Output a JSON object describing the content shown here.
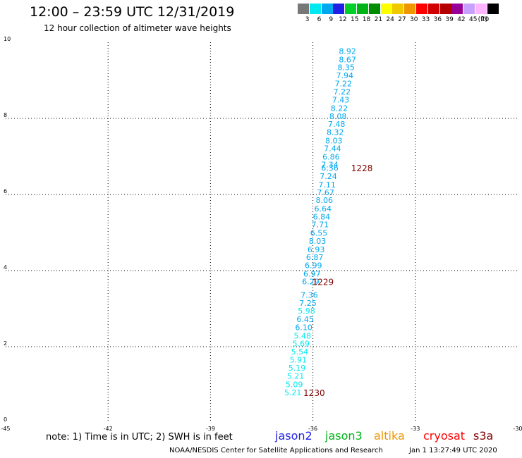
{
  "header": {
    "title": "12:00 – 23:59 UTC 12/31/2019",
    "subtitle": "12 hour collection of altimeter wave heights"
  },
  "colorbar": {
    "unit": "(ft)",
    "swatches": [
      {
        "label": "3",
        "color": "#787878"
      },
      {
        "label": "6",
        "color": "#00e8f0"
      },
      {
        "label": "9",
        "color": "#00a8f0"
      },
      {
        "label": "12",
        "color": "#1f1fe6"
      },
      {
        "label": "15",
        "color": "#00d028"
      },
      {
        "label": "18",
        "color": "#00b418"
      },
      {
        "label": "21",
        "color": "#008c00"
      },
      {
        "label": "24",
        "color": "#ffff00"
      },
      {
        "label": "27",
        "color": "#f0c800"
      },
      {
        "label": "30",
        "color": "#f09600"
      },
      {
        "label": "33",
        "color": "#ff0000"
      },
      {
        "label": "36",
        "color": "#d20000"
      },
      {
        "label": "39",
        "color": "#b40000"
      },
      {
        "label": "42",
        "color": "#960096"
      },
      {
        "label": "45",
        "color": "#c8a0ff"
      },
      {
        "label": "70",
        "color": "#ffb4ff"
      },
      {
        "label": "",
        "color": "#000000"
      }
    ]
  },
  "chart_data": {
    "type": "scatter",
    "xlim": [
      -45,
      -30
    ],
    "ylim": [
      0,
      10
    ],
    "x_ticks": [
      {
        "value": -45,
        "label": "-45"
      },
      {
        "value": -42,
        "label": "-42"
      },
      {
        "value": -39,
        "label": "-39"
      },
      {
        "value": -36,
        "label": "-36"
      },
      {
        "value": -33,
        "label": "-33"
      },
      {
        "value": -30,
        "label": "-30"
      }
    ],
    "y_ticks": [
      {
        "value": 0,
        "label": "0"
      },
      {
        "value": 2,
        "label": "2"
      },
      {
        "value": 4,
        "label": "4"
      },
      {
        "value": 6,
        "label": "6"
      },
      {
        "value": 8,
        "label": "8"
      },
      {
        "value": 10,
        "label": "10"
      }
    ],
    "grid": true,
    "points": [
      {
        "x": -35.24,
        "y": 9.77,
        "label": "8.92",
        "color": "#00a8f0"
      },
      {
        "x": -35.24,
        "y": 9.55,
        "label": "8.67",
        "color": "#00a8f0"
      },
      {
        "x": -35.28,
        "y": 9.34,
        "label": "8.35",
        "color": "#00a8f0"
      },
      {
        "x": -35.32,
        "y": 9.13,
        "label": "7.94",
        "color": "#00a8f0"
      },
      {
        "x": -35.36,
        "y": 8.92,
        "label": "7.22",
        "color": "#00a8f0"
      },
      {
        "x": -35.4,
        "y": 8.7,
        "label": "7.22",
        "color": "#00a8f0"
      },
      {
        "x": -35.44,
        "y": 8.49,
        "label": "7.43",
        "color": "#00a8f0"
      },
      {
        "x": -35.48,
        "y": 8.27,
        "label": "8.22",
        "color": "#00a8f0"
      },
      {
        "x": -35.52,
        "y": 8.06,
        "label": "8.08",
        "color": "#00a8f0"
      },
      {
        "x": -35.56,
        "y": 7.85,
        "label": "7.48",
        "color": "#00a8f0"
      },
      {
        "x": -35.6,
        "y": 7.64,
        "label": "8.32",
        "color": "#00a8f0"
      },
      {
        "x": -35.64,
        "y": 7.42,
        "label": "8.03",
        "color": "#00a8f0"
      },
      {
        "x": -35.68,
        "y": 7.21,
        "label": "7.44",
        "color": "#00a8f0"
      },
      {
        "x": -35.72,
        "y": 6.99,
        "label": "6.86",
        "color": "#00a8f0"
      },
      {
        "x": -35.76,
        "y": 6.79,
        "label": "7.34",
        "color": "#00a8f0"
      },
      {
        "x": -35.76,
        "y": 6.7,
        "label": "6.36",
        "color": "#00a8f0"
      },
      {
        "x": -35.8,
        "y": 6.48,
        "label": "7.24",
        "color": "#00a8f0"
      },
      {
        "x": -35.84,
        "y": 6.26,
        "label": "7.11",
        "color": "#00a8f0"
      },
      {
        "x": -35.88,
        "y": 6.06,
        "label": "7.67",
        "color": "#00a8f0"
      },
      {
        "x": -35.92,
        "y": 5.85,
        "label": "8.06",
        "color": "#00a8f0"
      },
      {
        "x": -35.96,
        "y": 5.63,
        "label": "6.64",
        "color": "#00a8f0"
      },
      {
        "x": -36.0,
        "y": 5.42,
        "label": "6.84",
        "color": "#00a8f0"
      },
      {
        "x": -36.04,
        "y": 5.21,
        "label": "7.71",
        "color": "#00a8f0"
      },
      {
        "x": -36.08,
        "y": 4.99,
        "label": "6.55",
        "color": "#00a8f0"
      },
      {
        "x": -36.12,
        "y": 4.78,
        "label": "8.03",
        "color": "#00a8f0"
      },
      {
        "x": -36.16,
        "y": 4.56,
        "label": "6.93",
        "color": "#00a8f0"
      },
      {
        "x": -36.2,
        "y": 4.35,
        "label": "6.87",
        "color": "#00a8f0"
      },
      {
        "x": -36.24,
        "y": 4.14,
        "label": "6.99",
        "color": "#00a8f0"
      },
      {
        "x": -36.28,
        "y": 3.92,
        "label": "6.97",
        "color": "#00a8f0"
      },
      {
        "x": -36.32,
        "y": 3.71,
        "label": "6.29",
        "color": "#00a8f0"
      },
      {
        "x": -36.36,
        "y": 3.36,
        "label": "7.36",
        "color": "#00a8f0"
      },
      {
        "x": -36.4,
        "y": 3.15,
        "label": "7.25",
        "color": "#00a8f0"
      },
      {
        "x": -36.44,
        "y": 2.94,
        "label": "5.98",
        "color": "#00e8f0"
      },
      {
        "x": -36.48,
        "y": 2.72,
        "label": "6.45",
        "color": "#00a8f0"
      },
      {
        "x": -36.52,
        "y": 2.51,
        "label": "6.10",
        "color": "#00a8f0"
      },
      {
        "x": -36.56,
        "y": 2.29,
        "label": "5.48",
        "color": "#00e8f0"
      },
      {
        "x": -36.6,
        "y": 2.08,
        "label": "5.69",
        "color": "#00e8f0"
      },
      {
        "x": -36.64,
        "y": 1.87,
        "label": "5.54",
        "color": "#00e8f0"
      },
      {
        "x": -36.68,
        "y": 1.66,
        "label": "5.91",
        "color": "#00e8f0"
      },
      {
        "x": -36.72,
        "y": 1.44,
        "label": "5.19",
        "color": "#00e8f0"
      },
      {
        "x": -36.76,
        "y": 1.23,
        "label": "5.21",
        "color": "#00e8f0"
      },
      {
        "x": -36.8,
        "y": 1.01,
        "label": "5.09",
        "color": "#00e8f0"
      },
      {
        "x": -36.84,
        "y": 0.8,
        "label": "5.21",
        "color": "#00e8f0"
      }
    ],
    "time_labels": [
      {
        "x": -34.88,
        "y": 6.7,
        "label": "1228",
        "color": "#800000"
      },
      {
        "x": -36.02,
        "y": 3.71,
        "label": "1229",
        "color": "#800000"
      },
      {
        "x": -36.28,
        "y": 0.8,
        "label": "1230",
        "color": "#800000"
      }
    ]
  },
  "note": "note: 1) Time is in UTC; 2) SWH is in feet",
  "legend": [
    {
      "label": "jason2",
      "color": "#1f1fe6"
    },
    {
      "label": "jason3",
      "color": "#00b418"
    },
    {
      "label": "altika",
      "color": "#f09600"
    },
    {
      "label": "cryosat",
      "color": "#ff0000"
    },
    {
      "label": "s3a",
      "color": "#800000"
    }
  ],
  "footer": {
    "credit": "NOAA/NESDIS Center for Satellite Applications and Research",
    "timestamp": "Jan  1 13:27:49 UTC 2020"
  }
}
